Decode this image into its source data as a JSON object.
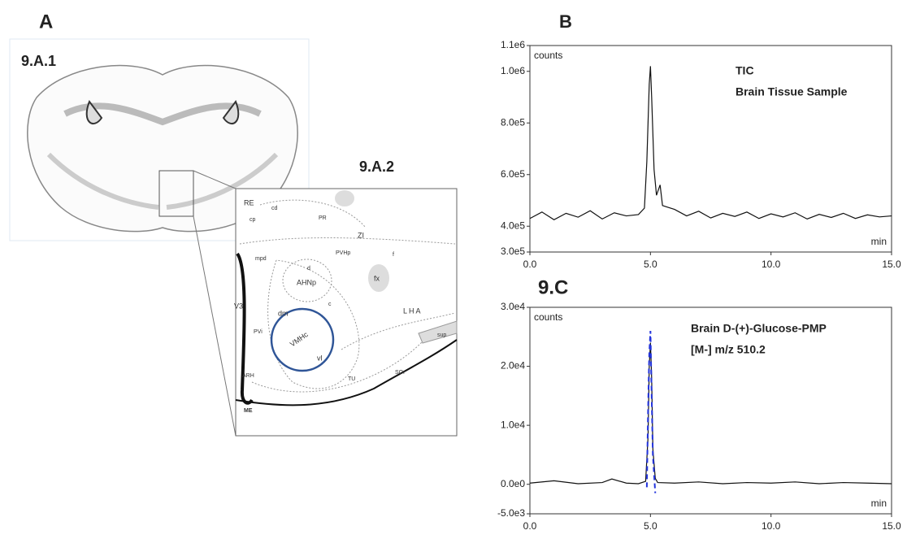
{
  "panels": {
    "a": "A",
    "a1": "9.A.1",
    "a2": "9.A.2"
  },
  "atlas_labels": [
    "RE",
    "cd",
    "cp",
    "PR",
    "ZI",
    "mpd",
    "PVHp",
    "f",
    "d",
    "AHNp",
    "fx",
    "V3",
    "dm",
    "c",
    "LHA",
    "PVi",
    "VMHc",
    "vl",
    "sup",
    "ARH",
    "TU",
    "SOr",
    "ME"
  ],
  "chart_data": [
    {
      "type": "line",
      "panel": "B",
      "ylabel": "counts",
      "xlabel": "min",
      "annotations": [
        "TIC",
        "Brain Tissue Sample"
      ],
      "xlim": [
        0,
        15
      ],
      "ylim": [
        300000,
        1100000
      ],
      "xticks": [
        {
          "value": 0,
          "label": "0.0"
        },
        {
          "value": 5,
          "label": "5.0"
        },
        {
          "value": 10,
          "label": "10.0"
        },
        {
          "value": 15,
          "label": "15.0"
        }
      ],
      "yticks": [
        {
          "value": 300000,
          "label": "3.0e5"
        },
        {
          "value": 400000,
          "label": "4.0e5"
        },
        {
          "value": 600000,
          "label": "6.0e5"
        },
        {
          "value": 800000,
          "label": "8.0e5"
        },
        {
          "value": 1000000,
          "label": "1.0e6"
        },
        {
          "value": 1100000,
          "label": "1.1e6"
        }
      ],
      "series": [
        {
          "color": "#111111",
          "line_style": "solid",
          "x": [
            0,
            0.5,
            1,
            1.5,
            2,
            2.5,
            3,
            3.5,
            4,
            4.5,
            4.75,
            4.85,
            4.95,
            5,
            5.05,
            5.15,
            5.25,
            5.4,
            5.5,
            6,
            6.5,
            7,
            7.5,
            8,
            8.5,
            9,
            9.5,
            10,
            10.5,
            11,
            11.5,
            12,
            12.5,
            13,
            13.5,
            14,
            14.5,
            15
          ],
          "values": [
            430000,
            455000,
            425000,
            450000,
            435000,
            460000,
            428000,
            452000,
            440000,
            445000,
            470000,
            650000,
            950000,
            1020000,
            900000,
            620000,
            520000,
            560000,
            480000,
            465000,
            440000,
            458000,
            432000,
            450000,
            438000,
            455000,
            430000,
            448000,
            436000,
            452000,
            428000,
            446000,
            434000,
            450000,
            430000,
            444000,
            436000,
            440000
          ]
        }
      ]
    },
    {
      "type": "line",
      "panel": "9.C",
      "ylabel": "counts",
      "xlabel": "min",
      "annotations": [
        "Brain D-(+)-Glucose-PMP",
        "[M-] m/z 510.2"
      ],
      "xlim": [
        0,
        15
      ],
      "ylim": [
        -5000,
        30000
      ],
      "xticks": [
        {
          "value": 0,
          "label": "0.0"
        },
        {
          "value": 5,
          "label": "5.0"
        },
        {
          "value": 10,
          "label": "10.0"
        },
        {
          "value": 15,
          "label": "15.0"
        }
      ],
      "yticks": [
        {
          "value": -5000,
          "label": "-5.0e3"
        },
        {
          "value": 0,
          "label": "0.0e0"
        },
        {
          "value": 10000,
          "label": "1.0e4"
        },
        {
          "value": 20000,
          "label": "2.0e4"
        },
        {
          "value": 30000,
          "label": "3.0e4"
        }
      ],
      "series": [
        {
          "color": "#111111",
          "line_style": "solid",
          "x": [
            0,
            1,
            2,
            3,
            3.4,
            4,
            4.5,
            4.8,
            4.9,
            4.95,
            5,
            5.05,
            5.1,
            5.2,
            5.3,
            6,
            7,
            8,
            9,
            10,
            11,
            12,
            13,
            14,
            15
          ],
          "values": [
            200,
            600,
            100,
            300,
            900,
            200,
            100,
            500,
            8000,
            20000,
            24000,
            18000,
            6000,
            1000,
            300,
            200,
            400,
            100,
            300,
            200,
            400,
            100,
            300,
            200,
            100
          ]
        },
        {
          "color": "#2233dd",
          "line_style": "dashed",
          "x": [
            4.85,
            4.9,
            4.95,
            5,
            5.05,
            5.1,
            5.2
          ],
          "values": [
            -500,
            12000,
            22000,
            26000,
            15000,
            5000,
            -1500
          ]
        }
      ]
    }
  ]
}
